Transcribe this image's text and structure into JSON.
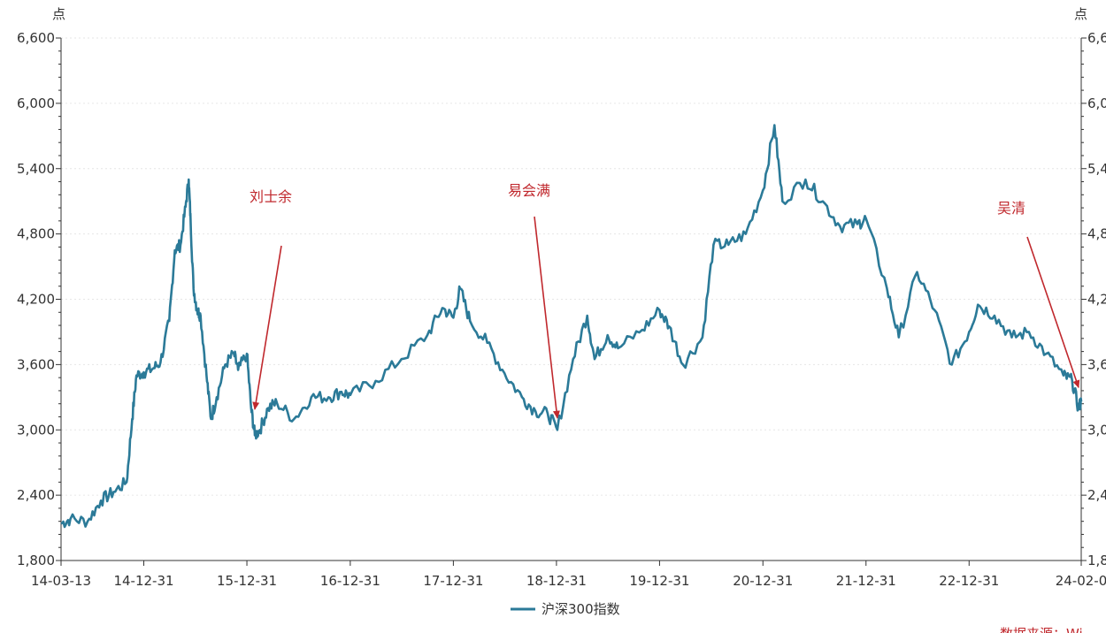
{
  "colors": {
    "series": "#2b7a98",
    "annotation": "#c0282d",
    "axis": "#333333",
    "grid": "#e6e6e6",
    "source_note": "#c0282d"
  },
  "unit_left": "点",
  "unit_right": "点",
  "legend_label": "沪深300指数",
  "source_note": "数据来源：Wi",
  "chart_data": {
    "type": "line",
    "title": "",
    "xlabel": "",
    "ylabel": "点",
    "ylim": [
      1800,
      6600
    ],
    "y_ticks": [
      "1,800",
      "2,400",
      "3,000",
      "3,600",
      "4,200",
      "4,800",
      "5,400",
      "6,000",
      "6,600"
    ],
    "right_y_ticks": [
      "1,8",
      "2,4",
      "3,0",
      "3,6",
      "4,2",
      "4,8",
      "5,4",
      "6,0",
      "6,6"
    ],
    "x_ticks": [
      "14-03-13",
      "14-12-31",
      "15-12-31",
      "16-12-31",
      "17-12-31",
      "18-12-31",
      "19-12-31",
      "20-12-31",
      "21-12-31",
      "22-12-31",
      "24-02-0"
    ],
    "grid": true,
    "legend_position": "bottom-center",
    "series": [
      {
        "name": "沪深300指数",
        "x": [
          "2014-03-13",
          "2014-04-15",
          "2014-06-15",
          "2014-08-01",
          "2014-09-15",
          "2014-10-31",
          "2014-11-20",
          "2014-12-05",
          "2014-12-31",
          "2015-01-31",
          "2015-02-28",
          "2015-03-31",
          "2015-04-20",
          "2015-05-10",
          "2015-05-28",
          "2015-06-08",
          "2015-06-15",
          "2015-06-25",
          "2015-07-08",
          "2015-07-20",
          "2015-08-10",
          "2015-08-26",
          "2015-09-15",
          "2015-10-15",
          "2015-11-15",
          "2015-11-30",
          "2015-12-31",
          "2016-01-15",
          "2016-01-28",
          "2016-02-15",
          "2016-03-15",
          "2016-04-15",
          "2016-06-15",
          "2016-08-15",
          "2016-10-15",
          "2016-11-30",
          "2016-12-31",
          "2017-03-31",
          "2017-06-30",
          "2017-09-30",
          "2017-11-22",
          "2017-12-31",
          "2018-01-24",
          "2018-02-28",
          "2018-04-30",
          "2018-06-30",
          "2018-08-31",
          "2018-10-18",
          "2018-11-30",
          "2019-01-03",
          "2019-02-28",
          "2019-04-19",
          "2019-05-15",
          "2019-06-30",
          "2019-08-06",
          "2019-10-31",
          "2019-12-31",
          "2020-02-03",
          "2020-03-23",
          "2020-05-31",
          "2020-07-09",
          "2020-08-31",
          "2020-10-31",
          "2020-12-31",
          "2021-02-10",
          "2021-03-10",
          "2021-05-31",
          "2021-07-31",
          "2021-09-30",
          "2021-11-30",
          "2021-12-31",
          "2022-03-15",
          "2022-04-26",
          "2022-06-30",
          "2022-08-31",
          "2022-10-31",
          "2022-12-31",
          "2023-01-31",
          "2023-03-31",
          "2023-05-31",
          "2023-07-31",
          "2023-09-30",
          "2023-11-30",
          "2023-12-31",
          "2024-01-22",
          "2024-02-01"
        ],
        "values": [
          2140,
          2180,
          2160,
          2350,
          2430,
          2520,
          3100,
          3500,
          3530,
          3560,
          3620,
          4000,
          4650,
          4700,
          5050,
          5300,
          4900,
          4300,
          4100,
          4050,
          3500,
          3100,
          3300,
          3600,
          3700,
          3550,
          3700,
          3200,
          2950,
          3000,
          3200,
          3250,
          3100,
          3300,
          3300,
          3350,
          3320,
          3450,
          3650,
          3870,
          4120,
          4030,
          4300,
          4000,
          3800,
          3520,
          3300,
          3170,
          3150,
          3000,
          3650,
          4050,
          3650,
          3870,
          3750,
          3920,
          4100,
          3950,
          3600,
          3850,
          4700,
          4700,
          4800,
          5200,
          5800,
          5100,
          5300,
          5100,
          4870,
          4890,
          4940,
          4300,
          3850,
          4450,
          4100,
          3600,
          3900,
          4150,
          4050,
          3850,
          3900,
          3700,
          3500,
          3450,
          3200,
          3260
        ]
      }
    ],
    "annotations": [
      {
        "text": "刘士余",
        "x": "2016-01-28",
        "y": 3190
      },
      {
        "text": "易会满",
        "x": "2019-01-03",
        "y": 3110
      },
      {
        "text": "吴清",
        "x": "2024-02-01",
        "y": 3390
      }
    ]
  }
}
